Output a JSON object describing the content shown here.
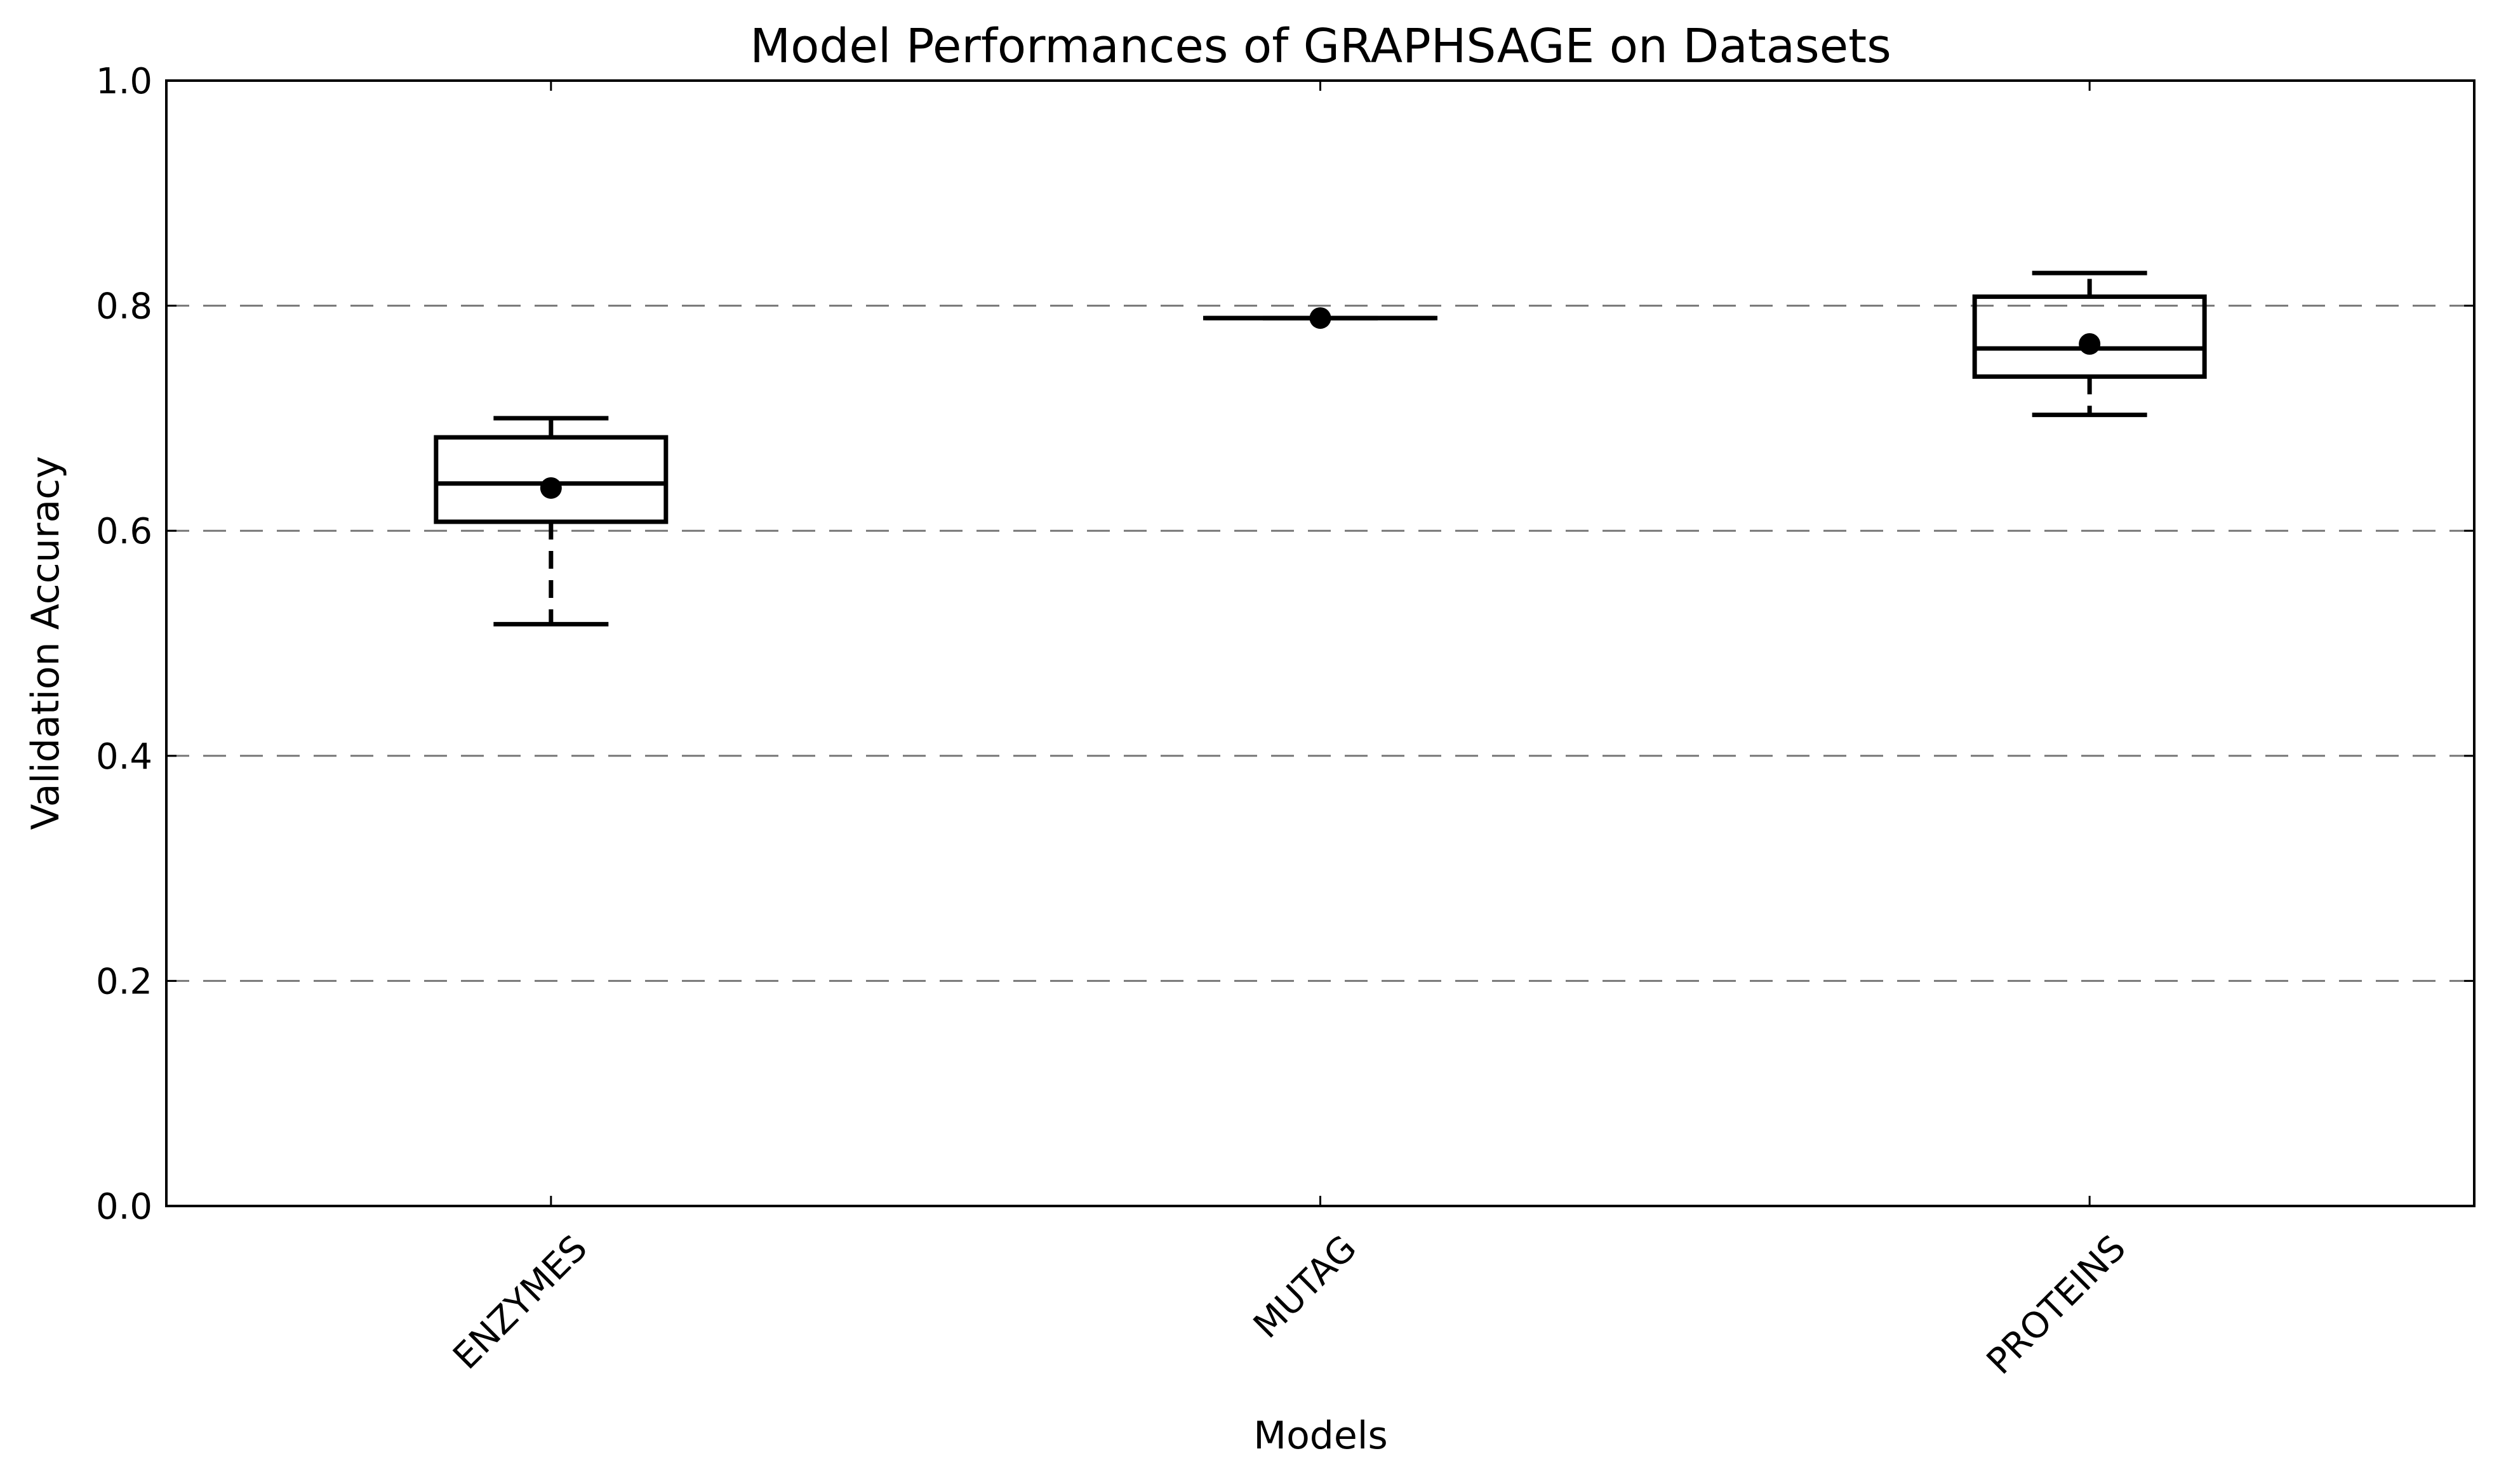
{
  "chart_data": {
    "type": "box",
    "title": "Model Performances of GRAPHSAGE on Datasets",
    "xlabel": "Models",
    "ylabel": "Validation Accuracy",
    "ylim": [
      0.0,
      1.0
    ],
    "yticks": [
      "0.0",
      "0.2",
      "0.4",
      "0.6",
      "0.8",
      "1.0"
    ],
    "grid": "horizontal dashed",
    "categories": [
      "ENZYMES",
      "MUTAG",
      "PROTEINS"
    ],
    "boxes": [
      {
        "category": "ENZYMES",
        "whisker_low": 0.517,
        "q1": 0.608,
        "median": 0.642,
        "q3": 0.683,
        "whisker_high": 0.7,
        "mean": 0.638
      },
      {
        "category": "MUTAG",
        "whisker_low": 0.789,
        "q1": 0.789,
        "median": 0.789,
        "q3": 0.789,
        "whisker_high": 0.789,
        "mean": 0.789
      },
      {
        "category": "PROTEINS",
        "whisker_low": 0.703,
        "q1": 0.737,
        "median": 0.762,
        "q3": 0.808,
        "whisker_high": 0.829,
        "mean": 0.766
      }
    ]
  }
}
